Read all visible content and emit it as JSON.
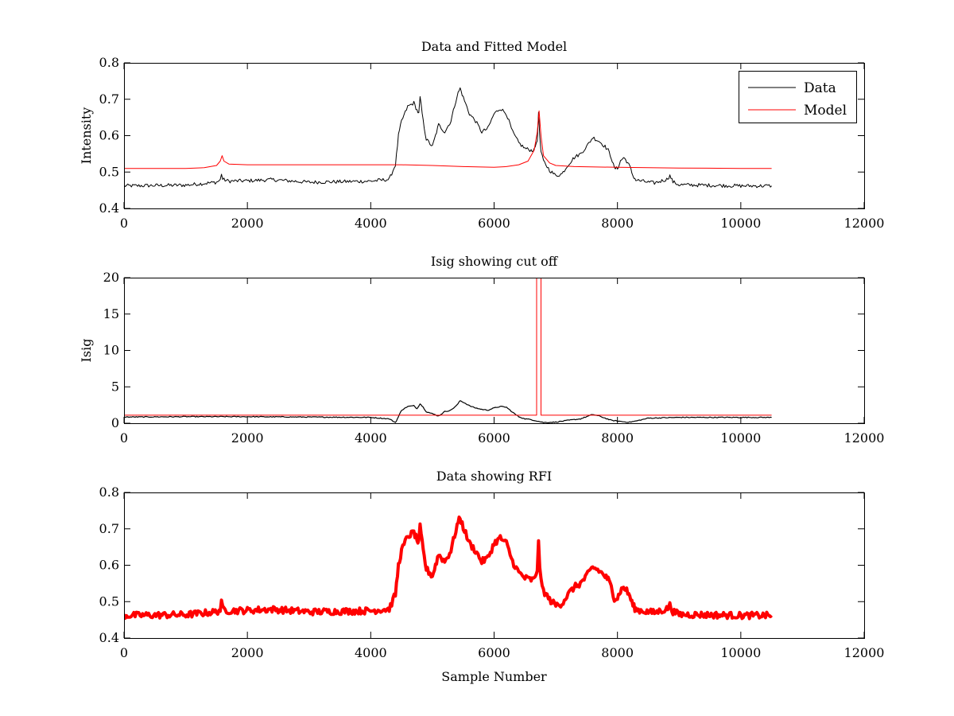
{
  "chart_data": [
    {
      "type": "line",
      "title": "Data and Fitted Model",
      "xlabel": "",
      "ylabel": "Intensity",
      "xlim": [
        0,
        12000
      ],
      "ylim": [
        0.4,
        0.8
      ],
      "xticks": [
        0,
        2000,
        4000,
        6000,
        8000,
        10000,
        12000
      ],
      "yticks": [
        0.4,
        0.5,
        0.6,
        0.7,
        0.8
      ],
      "xtick_labels": [
        "0",
        "2000",
        "4000",
        "6000",
        "8000",
        "10000",
        "12000"
      ],
      "ytick_labels": [
        "0.4",
        "0.5",
        "0.6",
        "0.7",
        "0.8"
      ],
      "legend": {
        "placement": "top-right",
        "entries": [
          "Data",
          "Model"
        ]
      },
      "grid": false,
      "series": [
        {
          "name": "Data",
          "color": "#000000",
          "noise": 0.005,
          "x": [
            0,
            1000,
            1500,
            1560,
            1580,
            1600,
            1700,
            2000,
            2400,
            3000,
            4000,
            4300,
            4400,
            4450,
            4500,
            4600,
            4700,
            4750,
            4780,
            4800,
            4850,
            4900,
            5000,
            5050,
            5100,
            5200,
            5300,
            5400,
            5450,
            5500,
            5600,
            5700,
            5800,
            5900,
            6000,
            6100,
            6200,
            6300,
            6400,
            6500,
            6600,
            6650,
            6700,
            6720,
            6740,
            6760,
            6800,
            6900,
            7000,
            7100,
            7200,
            7300,
            7400,
            7500,
            7600,
            7700,
            7800,
            7850,
            7900,
            7950,
            8000,
            8050,
            8100,
            8150,
            8200,
            8250,
            8300,
            8400,
            8500,
            8600,
            8800,
            8850,
            8900,
            9000,
            10000,
            10500
          ],
          "y": [
            0.462,
            0.464,
            0.472,
            0.478,
            0.496,
            0.48,
            0.475,
            0.476,
            0.479,
            0.472,
            0.475,
            0.48,
            0.52,
            0.6,
            0.64,
            0.68,
            0.69,
            0.67,
            0.66,
            0.705,
            0.64,
            0.59,
            0.57,
            0.6,
            0.63,
            0.61,
            0.64,
            0.71,
            0.73,
            0.705,
            0.66,
            0.64,
            0.61,
            0.62,
            0.66,
            0.675,
            0.66,
            0.61,
            0.58,
            0.565,
            0.56,
            0.56,
            0.59,
            0.66,
            0.6,
            0.555,
            0.53,
            0.505,
            0.49,
            0.495,
            0.52,
            0.54,
            0.55,
            0.57,
            0.595,
            0.585,
            0.57,
            0.56,
            0.54,
            0.51,
            0.51,
            0.53,
            0.54,
            0.53,
            0.515,
            0.49,
            0.478,
            0.475,
            0.472,
            0.47,
            0.48,
            0.49,
            0.473,
            0.465,
            0.462,
            0.462
          ]
        },
        {
          "name": "Model",
          "color": "#ff0000",
          "noise": 0,
          "x": [
            0,
            500,
            1000,
            1300,
            1500,
            1560,
            1590,
            1620,
            1700,
            2000,
            3000,
            4000,
            4500,
            5000,
            5500,
            6000,
            6200,
            6400,
            6550,
            6650,
            6700,
            6730,
            6760,
            6800,
            6900,
            7000,
            7300,
            8000,
            9000,
            10000,
            10500
          ],
          "y": [
            0.51,
            0.51,
            0.51,
            0.512,
            0.518,
            0.53,
            0.545,
            0.53,
            0.522,
            0.52,
            0.52,
            0.52,
            0.52,
            0.518,
            0.515,
            0.513,
            0.515,
            0.52,
            0.53,
            0.56,
            0.61,
            0.668,
            0.6,
            0.545,
            0.525,
            0.518,
            0.515,
            0.513,
            0.511,
            0.51,
            0.51
          ]
        }
      ]
    },
    {
      "type": "line",
      "title": "Isig showing cut off",
      "xlabel": "",
      "ylabel": "Isig",
      "xlim": [
        0,
        12000
      ],
      "ylim": [
        0,
        20
      ],
      "xticks": [
        0,
        2000,
        4000,
        6000,
        8000,
        10000,
        12000
      ],
      "yticks": [
        0,
        5,
        10,
        15,
        20
      ],
      "xtick_labels": [
        "0",
        "2000",
        "4000",
        "6000",
        "8000",
        "10000",
        "12000"
      ],
      "ytick_labels": [
        "0",
        "5",
        "10",
        "15",
        "20"
      ],
      "grid": false,
      "series": [
        {
          "color": "#000000",
          "noise": 0.06,
          "x": [
            0,
            1000,
            2000,
            3000,
            4000,
            4300,
            4400,
            4450,
            4500,
            4600,
            4700,
            4750,
            4800,
            4850,
            4900,
            5000,
            5100,
            5200,
            5300,
            5400,
            5450,
            5500,
            5600,
            5700,
            5800,
            5900,
            6000,
            6100,
            6200,
            6300,
            6400,
            6500,
            6600,
            6700,
            6800,
            7000,
            7200,
            7400,
            7500,
            7600,
            7700,
            7800,
            7900,
            8000,
            8100,
            8200,
            8300,
            8400,
            8500,
            9000,
            10000,
            10500
          ],
          "y": [
            0.85,
            0.9,
            0.9,
            0.85,
            0.8,
            0.6,
            0.1,
            0.9,
            1.8,
            2.3,
            2.4,
            2.0,
            2.7,
            2.2,
            1.6,
            1.3,
            1.0,
            1.6,
            1.8,
            2.5,
            3.1,
            2.9,
            2.4,
            2.1,
            1.9,
            1.8,
            2.1,
            2.3,
            2.2,
            1.5,
            0.9,
            0.6,
            0.5,
            0.3,
            0.1,
            0.15,
            0.4,
            0.6,
            0.9,
            1.2,
            1.0,
            0.7,
            0.4,
            0.3,
            0.2,
            0.15,
            0.3,
            0.5,
            0.7,
            0.8,
            0.8,
            0.8
          ]
        },
        {
          "color": "#ff0000",
          "noise": 0,
          "x": [
            0,
            6690,
            6690,
            6760,
            6760,
            10500
          ],
          "y": [
            1.1,
            1.1,
            20,
            20,
            1.1,
            1.1
          ]
        }
      ]
    },
    {
      "type": "line",
      "title": "Data showing RFI",
      "xlabel": "Sample Number",
      "ylabel": "",
      "xlim": [
        0,
        12000
      ],
      "ylim": [
        0.4,
        0.8
      ],
      "xticks": [
        0,
        2000,
        4000,
        6000,
        8000,
        10000,
        12000
      ],
      "yticks": [
        0.4,
        0.5,
        0.6,
        0.7,
        0.8
      ],
      "xtick_labels": [
        "0",
        "2000",
        "4000",
        "6000",
        "8000",
        "10000",
        "12000"
      ],
      "ytick_labels": [
        "0.4",
        "0.5",
        "0.6",
        "0.7",
        "0.8"
      ],
      "grid": false,
      "series": [
        {
          "color": "#ff0000",
          "noise": 0.009,
          "x": [
            0,
            1000,
            1500,
            1560,
            1580,
            1600,
            1700,
            2000,
            2400,
            3000,
            4000,
            4300,
            4400,
            4450,
            4500,
            4600,
            4700,
            4750,
            4780,
            4800,
            4850,
            4900,
            5000,
            5050,
            5100,
            5200,
            5300,
            5400,
            5450,
            5500,
            5600,
            5700,
            5800,
            5900,
            6000,
            6100,
            6200,
            6300,
            6400,
            6500,
            6600,
            6650,
            6700,
            6720,
            6740,
            6760,
            6800,
            6900,
            7000,
            7100,
            7200,
            7300,
            7400,
            7500,
            7600,
            7700,
            7800,
            7850,
            7900,
            7950,
            8000,
            8050,
            8100,
            8150,
            8200,
            8250,
            8300,
            8400,
            8500,
            8600,
            8800,
            8850,
            8900,
            9000,
            10000,
            10500
          ],
          "y": [
            0.462,
            0.464,
            0.472,
            0.478,
            0.496,
            0.48,
            0.475,
            0.476,
            0.479,
            0.472,
            0.475,
            0.48,
            0.52,
            0.6,
            0.64,
            0.68,
            0.69,
            0.67,
            0.66,
            0.705,
            0.64,
            0.59,
            0.57,
            0.6,
            0.63,
            0.61,
            0.64,
            0.71,
            0.73,
            0.705,
            0.66,
            0.64,
            0.61,
            0.62,
            0.66,
            0.675,
            0.66,
            0.61,
            0.58,
            0.565,
            0.56,
            0.56,
            0.59,
            0.66,
            0.6,
            0.555,
            0.53,
            0.505,
            0.49,
            0.495,
            0.52,
            0.54,
            0.55,
            0.57,
            0.595,
            0.585,
            0.57,
            0.56,
            0.54,
            0.51,
            0.51,
            0.53,
            0.54,
            0.53,
            0.515,
            0.49,
            0.478,
            0.475,
            0.472,
            0.47,
            0.48,
            0.49,
            0.473,
            0.465,
            0.462,
            0.462
          ]
        }
      ]
    }
  ]
}
